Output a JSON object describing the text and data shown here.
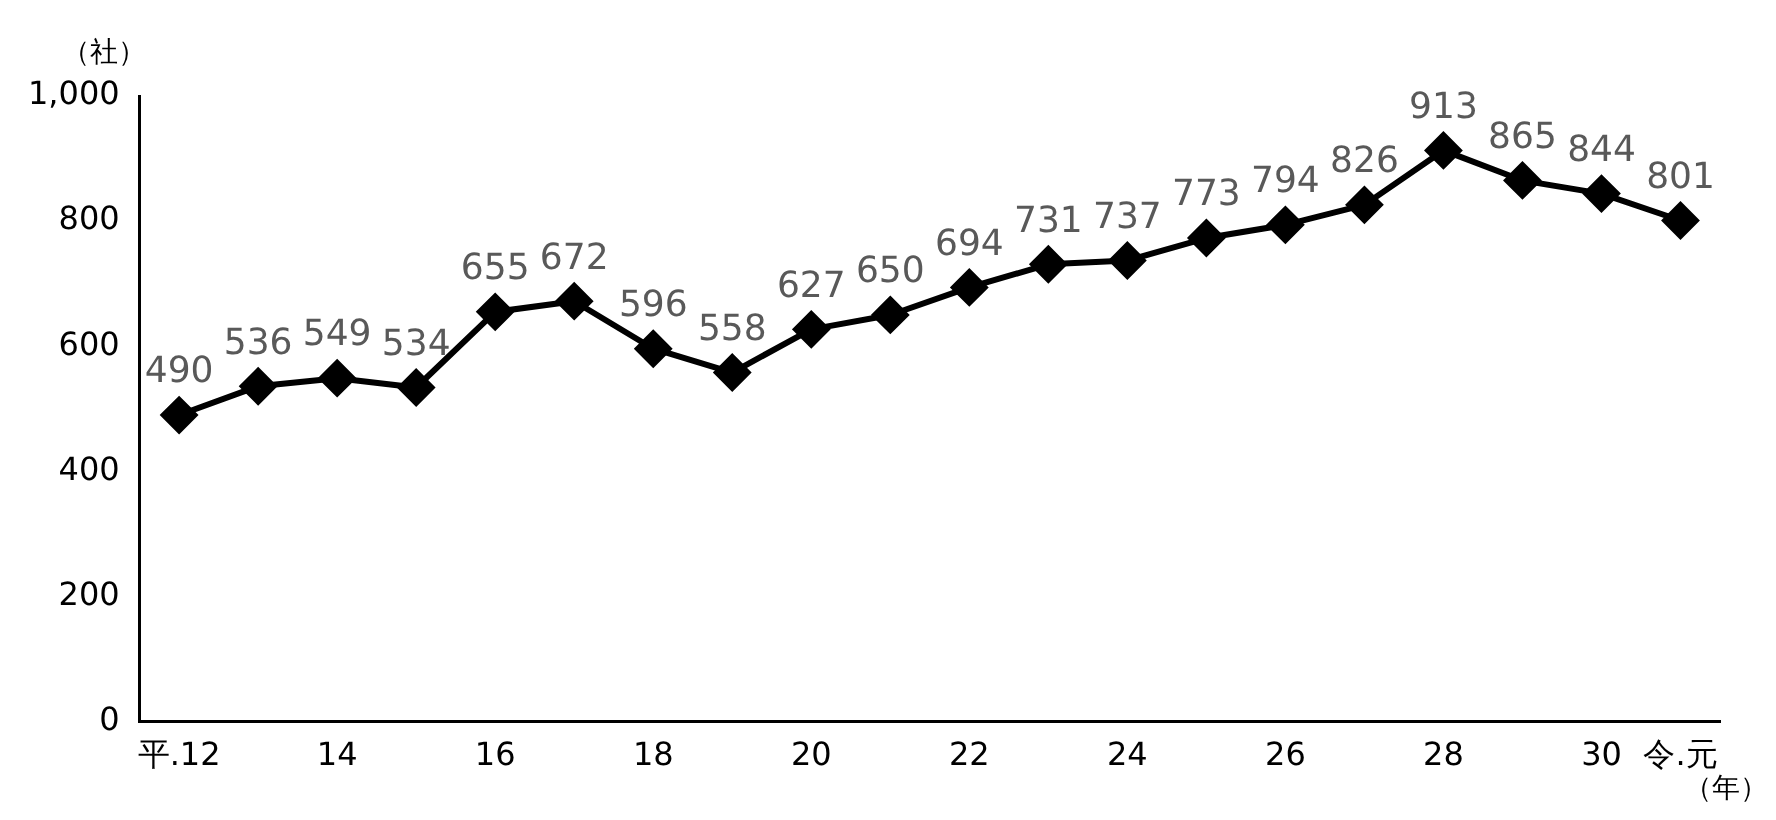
{
  "chart_data": {
    "type": "line",
    "ylabel": "（社）",
    "xlabel": "（年）",
    "categories": [
      "平.12",
      null,
      "14",
      null,
      "16",
      null,
      "18",
      null,
      "20",
      null,
      "22",
      null,
      "24",
      null,
      "26",
      null,
      "28",
      null,
      "30",
      "令.元"
    ],
    "series": [
      {
        "color": "#000000",
        "values": [
          490,
          536,
          549,
          534,
          655,
          672,
          596,
          558,
          627,
          650,
          694,
          731,
          737,
          773,
          794,
          826,
          913,
          865,
          844,
          801
        ]
      }
    ],
    "ylim": [
      0,
      1000
    ],
    "yticks": [
      0,
      200,
      400,
      600,
      800,
      {
        "value": 1000,
        "label": "1,000"
      }
    ],
    "grid": false,
    "legend": false,
    "marker": "diamond",
    "line_style": "solid",
    "data_labels": true
  }
}
